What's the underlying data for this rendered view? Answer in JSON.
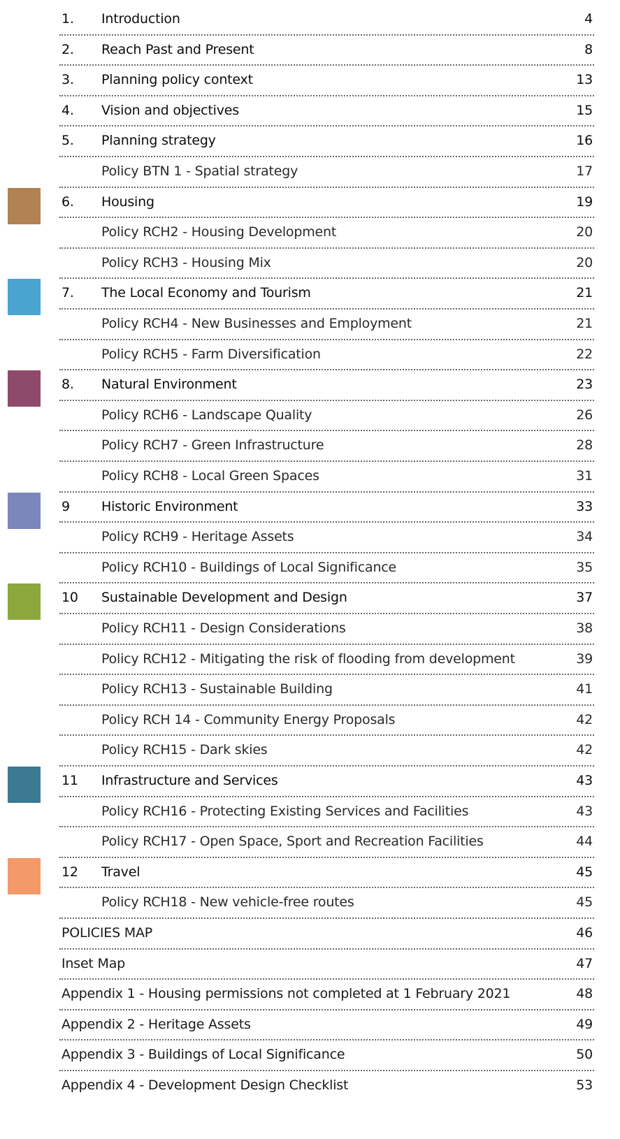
{
  "toc": {
    "entries": [
      {
        "number": "1.",
        "title": "Introduction",
        "page": 4,
        "level": "section"
      },
      {
        "number": "2.",
        "title": "Reach Past and Present",
        "page": 8,
        "level": "section"
      },
      {
        "number": "3.",
        "title": "Planning policy context",
        "page": 13,
        "level": "section"
      },
      {
        "number": "4.",
        "title": "Vision and objectives",
        "page": 15,
        "level": "section"
      },
      {
        "number": "5.",
        "title": "Planning strategy",
        "page": 16,
        "level": "section"
      },
      {
        "title": "Policy BTN 1 - Spatial strategy",
        "page": 17,
        "level": "policy"
      },
      {
        "number": "6.",
        "title": "Housing",
        "page": 19,
        "level": "section",
        "color": "#b08254"
      },
      {
        "title": "Policy RCH2 - Housing Development",
        "page": 20,
        "level": "policy"
      },
      {
        "title": "Policy RCH3 - Housing Mix",
        "page": 20,
        "level": "policy"
      },
      {
        "number": "7.",
        "title": "The Local Economy and Tourism",
        "page": 21,
        "level": "section",
        "color": "#4aa3d0"
      },
      {
        "title": "Policy RCH4 - New Businesses and Employment",
        "page": 21,
        "level": "policy"
      },
      {
        "title": "Policy RCH5 - Farm Diversification",
        "page": 22,
        "level": "policy"
      },
      {
        "number": "8.",
        "title": "Natural Environment",
        "page": 23,
        "level": "section",
        "color": "#8e4a6b"
      },
      {
        "title": "Policy RCH6 - Landscape Quality",
        "page": 26,
        "level": "policy"
      },
      {
        "title": "Policy RCH7 - Green Infrastructure",
        "page": 28,
        "level": "policy"
      },
      {
        "title": "Policy RCH8 - Local Green Spaces",
        "page": 31,
        "level": "policy"
      },
      {
        "number": "9",
        "title": "Historic Environment",
        "page": 33,
        "level": "section",
        "color": "#7b87ba"
      },
      {
        "title": "Policy RCH9 - Heritage Assets",
        "page": 34,
        "level": "policy"
      },
      {
        "title": "Policy RCH10 - Buildings of Local Significance",
        "page": 35,
        "level": "policy"
      },
      {
        "number": "10",
        "title": "Sustainable Development and Design",
        "page": 37,
        "level": "section",
        "color": "#8ca83c"
      },
      {
        "title": "Policy RCH11 - Design Considerations",
        "page": 38,
        "level": "policy"
      },
      {
        "title": "Policy RCH12 - Mitigating the risk of flooding from development",
        "page": 39,
        "level": "policy"
      },
      {
        "title": "Policy RCH13 - Sustainable Building",
        "page": 41,
        "level": "policy"
      },
      {
        "title": "Policy RCH 14 - Community Energy Proposals",
        "page": 42,
        "level": "policy"
      },
      {
        "title": "Policy RCH15 - Dark skies",
        "page": 42,
        "level": "policy"
      },
      {
        "number": "11",
        "title": "Infrastructure and Services",
        "page": 43,
        "level": "section",
        "color": "#3b7a91"
      },
      {
        "title": "Policy RCH16 - Protecting Existing Services and Facilities",
        "page": 43,
        "level": "policy"
      },
      {
        "title": "Policy RCH17 - Open Space, Sport and Recreation Facilities",
        "page": 44,
        "level": "policy"
      },
      {
        "number": "12",
        "title": "Travel",
        "page": 45,
        "level": "section",
        "color": "#f4996a"
      },
      {
        "title": "Policy RCH18 - New vehicle-free routes",
        "page": 45,
        "level": "policy"
      },
      {
        "title": "POLICIES MAP",
        "page": 46,
        "level": "appendix"
      },
      {
        "title": "Inset Map",
        "page": 47,
        "level": "appendix"
      },
      {
        "title": "Appendix 1 - Housing permissions not completed at 1 February 2021",
        "page": 48,
        "level": "appendix"
      },
      {
        "title": "Appendix 2 - Heritage Assets",
        "page": 49,
        "level": "appendix"
      },
      {
        "title": "Appendix 3 - Buildings of Local Significance",
        "page": 50,
        "level": "appendix"
      },
      {
        "title": "Appendix 4 - Development Design Checklist",
        "page": 53,
        "level": "appendix"
      }
    ]
  }
}
